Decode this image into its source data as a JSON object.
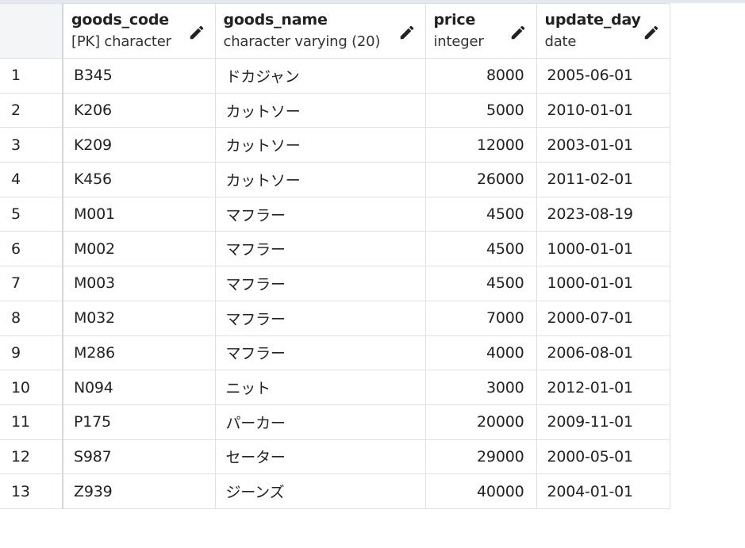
{
  "columns": [
    {
      "name": "goods_code",
      "type": "[PK] character"
    },
    {
      "name": "goods_name",
      "type": "character varying (20)"
    },
    {
      "name": "price",
      "type": "integer"
    },
    {
      "name": "update_day",
      "type": "date"
    }
  ],
  "rows": [
    {
      "idx": "1",
      "code": "B345",
      "name": "ドカジャン",
      "price": "8000",
      "date": "2005-06-01"
    },
    {
      "idx": "2",
      "code": "K206",
      "name": "カットソー",
      "price": "5000",
      "date": "2010-01-01"
    },
    {
      "idx": "3",
      "code": "K209",
      "name": "カットソー",
      "price": "12000",
      "date": "2003-01-01"
    },
    {
      "idx": "4",
      "code": "K456",
      "name": "カットソー",
      "price": "26000",
      "date": "2011-02-01"
    },
    {
      "idx": "5",
      "code": "M001",
      "name": "マフラー",
      "price": "4500",
      "date": "2023-08-19"
    },
    {
      "idx": "6",
      "code": "M002",
      "name": "マフラー",
      "price": "4500",
      "date": "1000-01-01"
    },
    {
      "idx": "7",
      "code": "M003",
      "name": "マフラー",
      "price": "4500",
      "date": "1000-01-01"
    },
    {
      "idx": "8",
      "code": "M032",
      "name": "マフラー",
      "price": "7000",
      "date": "2000-07-01"
    },
    {
      "idx": "9",
      "code": "M286",
      "name": "マフラー",
      "price": "4000",
      "date": "2006-08-01"
    },
    {
      "idx": "10",
      "code": "N094",
      "name": "ニット",
      "price": "3000",
      "date": "2012-01-01"
    },
    {
      "idx": "11",
      "code": "P175",
      "name": "パーカー",
      "price": "20000",
      "date": "2009-11-01"
    },
    {
      "idx": "12",
      "code": "S987",
      "name": "セーター",
      "price": "29000",
      "date": "2000-05-01"
    },
    {
      "idx": "13",
      "code": "Z939",
      "name": "ジーンズ",
      "price": "40000",
      "date": "2004-01-01"
    }
  ],
  "icons": {
    "edit": "pencil-icon"
  }
}
